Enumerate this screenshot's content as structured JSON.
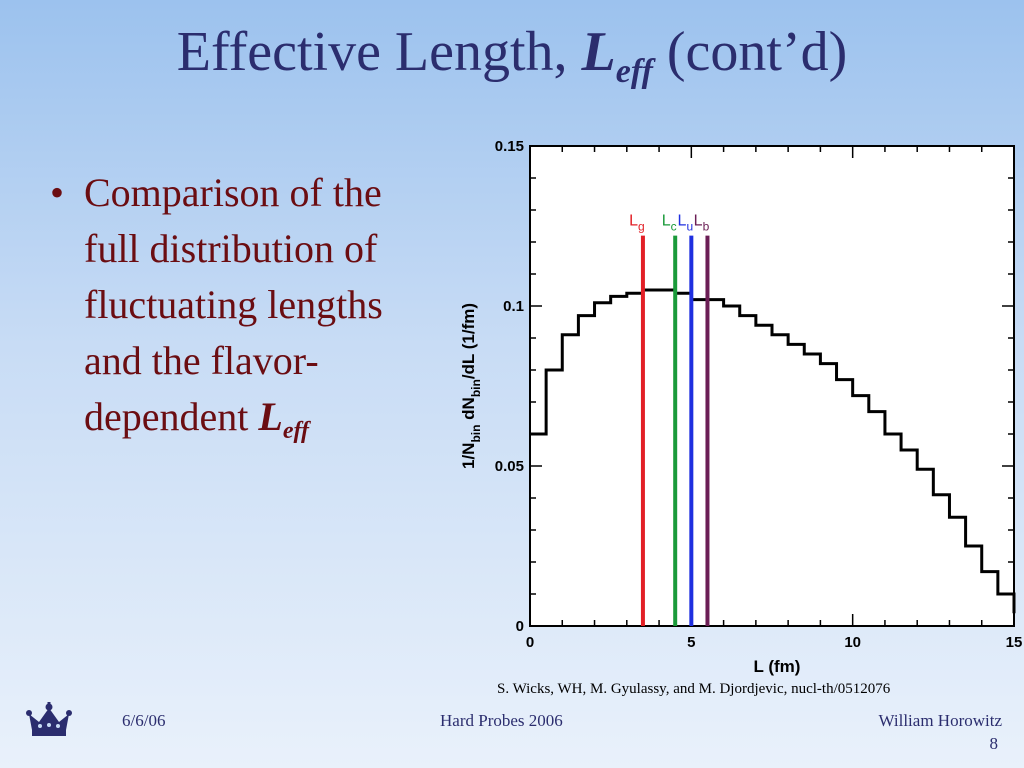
{
  "slide": {
    "title_main": "Effective Length,",
    "title_symbol": "L",
    "title_subscript": "eff",
    "title_suffix": "(cont’d)",
    "bullet_text": "Comparison of the full distribution of fluctuating lengths and the flavor-dependent",
    "bullet_symbol": "L",
    "bullet_subscript": "eff",
    "citation": "S. Wicks, WH, M. Gyulassy, and M. Djordjevic, nucl-th/0512076"
  },
  "footer": {
    "date": "6/6/06",
    "conference": "Hard Probes 2006",
    "author": "William Horowitz",
    "page_number": "8",
    "logo_icon": "crown-icon"
  },
  "chart_data": {
    "type": "line",
    "style": "step-histogram",
    "xlabel": "L (fm)",
    "ylabel_parts": [
      "1/N",
      "bin",
      " dN",
      "bin",
      "/dL (1/fm)"
    ],
    "xlim": [
      0,
      15
    ],
    "ylim": [
      0,
      0.15
    ],
    "x_ticks": [
      0,
      5,
      10,
      15
    ],
    "y_ticks": [
      0,
      0.05,
      0.1,
      0.15
    ],
    "y_tick_labels": [
      "0",
      "0.05",
      "0.1",
      "0.15"
    ],
    "grid": false,
    "bin_width": 0.5,
    "bin_edges_start": 0,
    "histogram_values": [
      0.06,
      0.08,
      0.091,
      0.097,
      0.101,
      0.103,
      0.104,
      0.105,
      0.105,
      0.104,
      0.102,
      0.102,
      0.1,
      0.097,
      0.094,
      0.091,
      0.088,
      0.085,
      0.082,
      0.077,
      0.072,
      0.067,
      0.06,
      0.055,
      0.049,
      0.041,
      0.034,
      0.025,
      0.017,
      0.01,
      0.004
    ],
    "vertical_lines": [
      {
        "name": "g",
        "label": "L",
        "subscript": "g",
        "x": 3.5,
        "color": "#e21f26"
      },
      {
        "name": "c",
        "label": "L",
        "subscript": "c",
        "x": 4.5,
        "color": "#1a9a3a"
      },
      {
        "name": "u",
        "label": "L",
        "subscript": "u",
        "x": 5.0,
        "color": "#1f2fe0"
      },
      {
        "name": "b",
        "label": "L",
        "subscript": "b",
        "x": 5.5,
        "color": "#6b1e55"
      }
    ],
    "vertical_line_top": 0.122
  }
}
